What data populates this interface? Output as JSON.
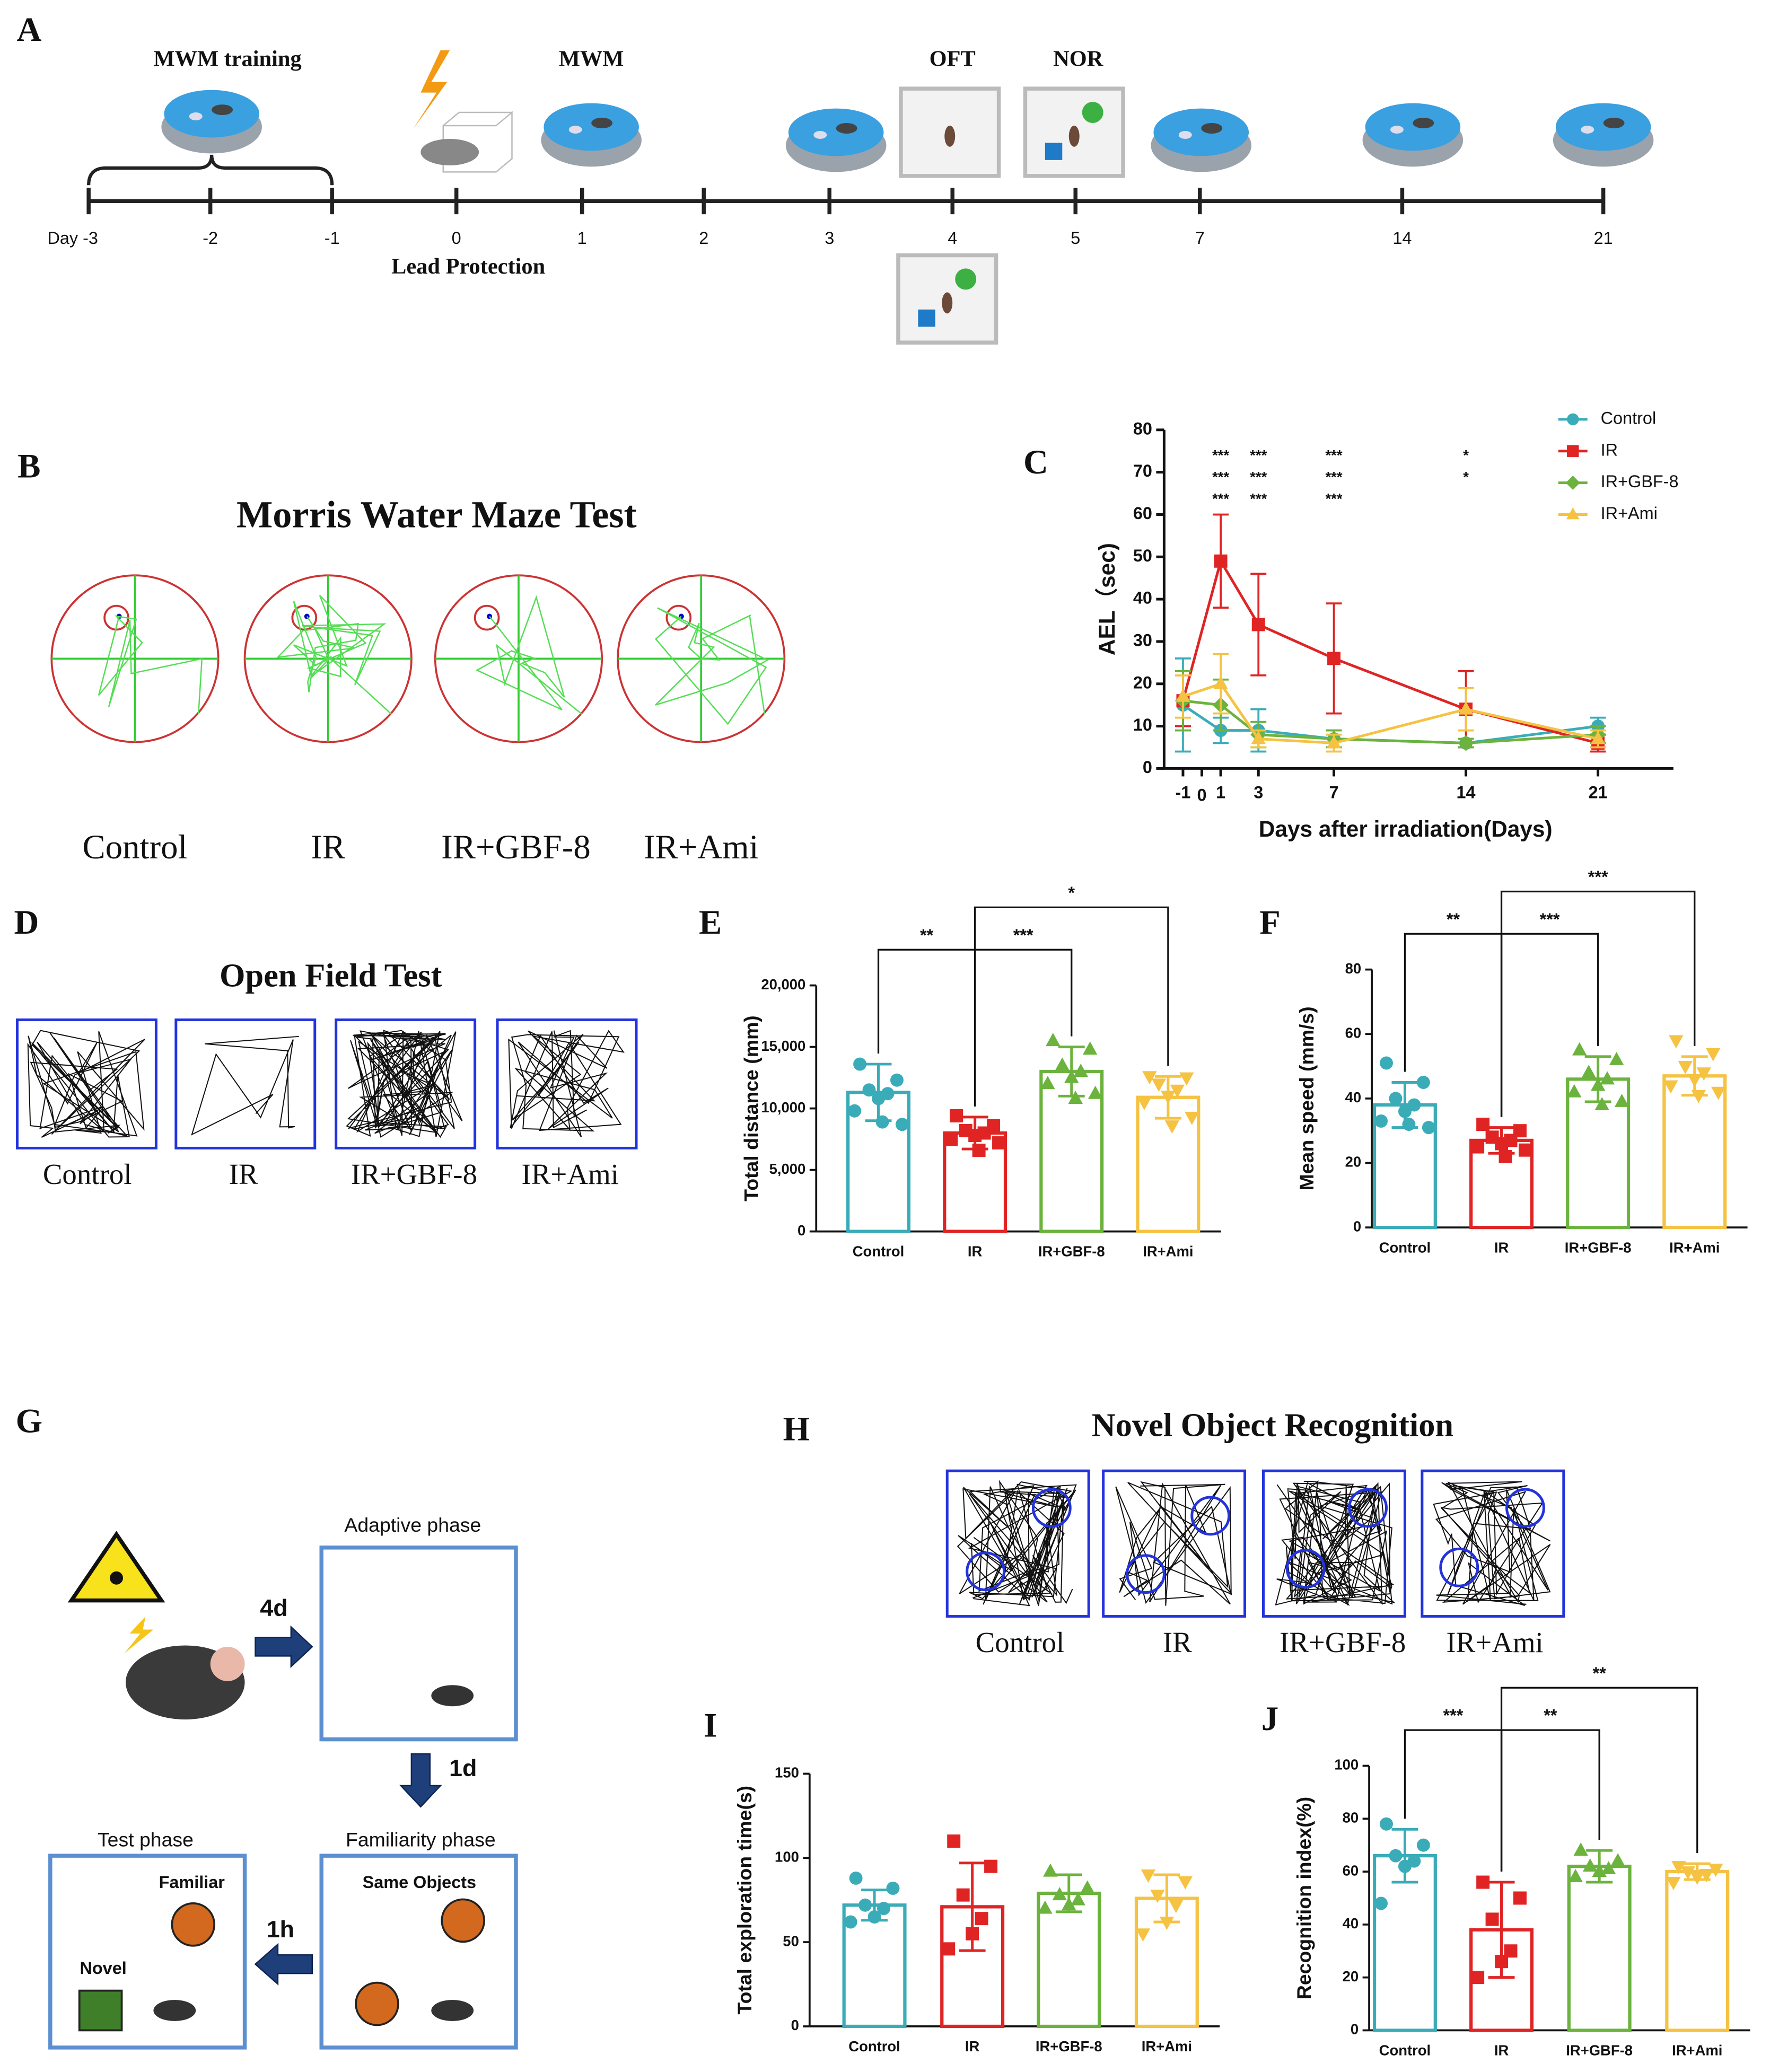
{
  "panel_labels": [
    "A",
    "B",
    "C",
    "D",
    "E",
    "F",
    "G",
    "H",
    "I",
    "J"
  ],
  "timeline": {
    "stages": [
      "MWM training",
      "MWM",
      "OFT",
      "NOR"
    ],
    "days": [
      "Day -3",
      "-2",
      "-1",
      "0",
      "1",
      "2",
      "3",
      "4",
      "5",
      "7",
      "14",
      "21"
    ],
    "note": "Lead Protection"
  },
  "mwm": {
    "title": "Morris Water Maze Test",
    "groups": [
      "Control",
      "IR",
      "IR+GBF-8",
      "IR+Ami"
    ]
  },
  "oft": {
    "title": "Open Field Test",
    "groups": [
      "Control",
      "IR",
      "IR+GBF-8",
      "IR+Ami"
    ]
  },
  "nor_protocol": {
    "intervals": [
      "4d",
      "1d",
      "1h"
    ],
    "adaptive": "Adaptive phase",
    "familiarity": "Familiarity phase",
    "same_objects": "Same Objects",
    "test": "Test phase",
    "familiar": "Familiar",
    "novel": "Novel"
  },
  "nor": {
    "title": "Novel Object Recognition",
    "groups": [
      "Control",
      "IR",
      "IR+GBF-8",
      "IR+Ami"
    ]
  },
  "chart_data": [
    {
      "type": "line",
      "xlabel": "Days after irradiation(Days)",
      "ylabel": "AEL（sec)",
      "x": [
        -1,
        1,
        3,
        7,
        14,
        21
      ],
      "xlim": [
        -2,
        25
      ],
      "xticks": [
        -1,
        0,
        1,
        3,
        7,
        14,
        21
      ],
      "ylim": [
        0,
        80
      ],
      "yticks": [
        0,
        10,
        20,
        30,
        40,
        50,
        60,
        70,
        80
      ],
      "legend": "upper right",
      "series": [
        {
          "name": "Control",
          "color": "#3aacb8",
          "marker": "circle",
          "values": [
            15,
            9,
            9,
            7,
            6,
            10
          ],
          "errors": [
            11,
            3,
            5,
            2,
            1,
            2
          ]
        },
        {
          "name": "IR",
          "color": "#e02424",
          "marker": "square",
          "values": [
            16,
            49,
            34,
            26,
            14,
            6
          ],
          "errors": [
            6,
            11,
            12,
            13,
            9,
            2
          ],
          "significance": [
            null,
            "***",
            "***",
            "***",
            "*",
            null
          ]
        },
        {
          "name": "IR+GBF-8",
          "color": "#6cb33e",
          "marker": "diamond",
          "values": [
            16,
            15,
            8,
            7,
            6,
            8
          ],
          "errors": [
            7,
            6,
            3,
            2,
            1,
            2
          ],
          "significance": [
            null,
            "***",
            "***",
            "***",
            "*",
            null
          ]
        },
        {
          "name": "IR+Ami",
          "color": "#f5c242",
          "marker": "triangle",
          "values": [
            17,
            20,
            7,
            6,
            14,
            7
          ],
          "errors": [
            5,
            7,
            2,
            2,
            5,
            2
          ],
          "significance": [
            null,
            "***",
            "***",
            "***",
            null,
            null
          ]
        }
      ]
    },
    {
      "type": "bar",
      "ylabel": "Total distance (mm)",
      "categories": [
        "Control",
        "IR",
        "IR+GBF-8",
        "IR+Ami"
      ],
      "colors": [
        "#3aacb8",
        "#e02424",
        "#6cb33e",
        "#f5c242"
      ],
      "markers": [
        "circle",
        "square",
        "triangle",
        "triangle-down"
      ],
      "values": [
        11300,
        8000,
        13000,
        10900
      ],
      "errors": [
        2300,
        1300,
        2000,
        1700
      ],
      "points": [
        [
          13600,
          12300,
          11500,
          11200,
          10800,
          9800,
          8700,
          8900
        ],
        [
          9400,
          8600,
          8200,
          8000,
          7800,
          7500,
          7200,
          6600
        ],
        [
          15500,
          14800,
          13500,
          13000,
          12500,
          12000,
          11200,
          10800
        ],
        [
          12600,
          12500,
          12000,
          11500,
          11000,
          10500,
          9300,
          8600
        ]
      ],
      "ylim": [
        0,
        20000
      ],
      "yticks": [
        0,
        {
          "value": 5000,
          "label": "5,000"
        },
        {
          "value": 10000,
          "label": "10,000"
        },
        {
          "value": 15000,
          "label": "15,000"
        },
        {
          "value": 20000,
          "label": "20,000"
        }
      ],
      "comparisons": [
        {
          "pair": [
            0,
            1
          ],
          "label": "**"
        },
        {
          "pair": [
            1,
            2
          ],
          "label": "***"
        },
        {
          "pair": [
            1,
            3
          ],
          "label": "*"
        }
      ]
    },
    {
      "type": "bar",
      "ylabel": "Mean speed (mm/s)",
      "categories": [
        "Control",
        "IR",
        "IR+GBF-8",
        "IR+Ami"
      ],
      "colors": [
        "#3aacb8",
        "#e02424",
        "#6cb33e",
        "#f5c242"
      ],
      "markers": [
        "circle",
        "square",
        "triangle",
        "triangle-down"
      ],
      "values": [
        38,
        27,
        46,
        47
      ],
      "errors": [
        7,
        4,
        7,
        6
      ],
      "points": [
        [
          51,
          45,
          40,
          38,
          36,
          33,
          31,
          32
        ],
        [
          32,
          30,
          28,
          27,
          26,
          25,
          24,
          22
        ],
        [
          55,
          52,
          48,
          46,
          44,
          42,
          39,
          38
        ],
        [
          58,
          54,
          50,
          48,
          46,
          44,
          42,
          41
        ]
      ],
      "ylim": [
        0,
        80
      ],
      "yticks": [
        0,
        20,
        40,
        60,
        80
      ],
      "comparisons": [
        {
          "pair": [
            0,
            1
          ],
          "label": "**"
        },
        {
          "pair": [
            1,
            2
          ],
          "label": "***"
        },
        {
          "pair": [
            1,
            3
          ],
          "label": "***"
        }
      ]
    },
    {
      "type": "bar",
      "ylabel": "Total exploration time(s)",
      "categories": [
        "Control",
        "IR",
        "IR+GBF-8",
        "IR+Ami"
      ],
      "colors": [
        "#3aacb8",
        "#e02424",
        "#6cb33e",
        "#f5c242"
      ],
      "markers": [
        "circle",
        "square",
        "triangle",
        "triangle-down"
      ],
      "values": [
        72,
        71,
        79,
        76
      ],
      "errors": [
        9,
        26,
        11,
        14
      ],
      "points": [
        [
          88,
          82,
          72,
          70,
          65,
          62
        ],
        [
          110,
          95,
          78,
          64,
          55,
          46
        ],
        [
          92,
          82,
          78,
          75,
          72,
          70
        ],
        [
          90,
          86,
          78,
          72,
          62,
          55
        ]
      ],
      "ylim": [
        0,
        150
      ],
      "yticks": [
        0,
        50,
        100,
        150
      ],
      "comparisons": []
    },
    {
      "type": "bar",
      "ylabel": "Recognition index(%)",
      "categories": [
        "Control",
        "IR",
        "IR+GBF-8",
        "IR+Ami"
      ],
      "colors": [
        "#3aacb8",
        "#e02424",
        "#6cb33e",
        "#f5c242"
      ],
      "markers": [
        "circle",
        "square",
        "triangle",
        "triangle-down"
      ],
      "values": [
        66,
        38,
        62,
        60
      ],
      "errors": [
        10,
        18,
        6,
        3
      ],
      "points": [
        [
          78,
          70,
          66,
          64,
          62,
          48
        ],
        [
          56,
          50,
          42,
          30,
          26,
          20
        ],
        [
          68,
          64,
          62,
          61,
          60,
          58
        ],
        [
          62,
          61,
          60,
          59,
          58,
          56
        ]
      ],
      "ylim": [
        0,
        100
      ],
      "yticks": [
        0,
        20,
        40,
        60,
        80,
        100
      ],
      "comparisons": [
        {
          "pair": [
            0,
            1
          ],
          "label": "***"
        },
        {
          "pair": [
            1,
            2
          ],
          "label": "**"
        },
        {
          "pair": [
            1,
            3
          ],
          "label": "**"
        }
      ]
    }
  ]
}
